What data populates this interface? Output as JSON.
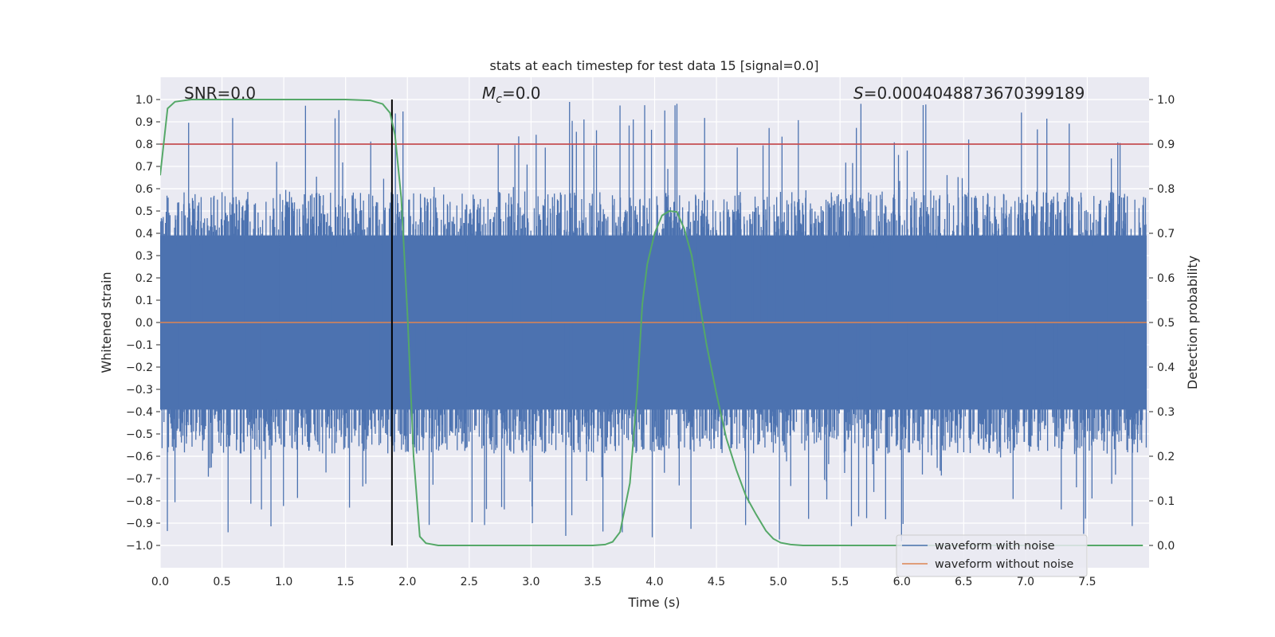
{
  "chart_data": {
    "type": "line",
    "title": "stats at each timestep for test data 15 [signal=0.0]",
    "xlabel": "Time (s)",
    "ylabel": "Whitened strain",
    "y2label": "Detection probability",
    "xlim": [
      0.0,
      8.0
    ],
    "ylim": [
      -1.1,
      1.1
    ],
    "y2lim": [
      -0.05,
      1.05
    ],
    "xticks": [
      "0.0",
      "0.5",
      "1.0",
      "1.5",
      "2.0",
      "2.5",
      "3.0",
      "3.5",
      "4.0",
      "4.5",
      "5.0",
      "5.5",
      "6.0",
      "6.5",
      "7.0",
      "7.5"
    ],
    "yticks": [
      "1.0",
      "0.9",
      "0.8",
      "0.7",
      "0.6",
      "0.5",
      "0.4",
      "0.3",
      "0.2",
      "0.1",
      "0.0",
      "−0.1",
      "−0.2",
      "−0.3",
      "−0.4",
      "−0.5",
      "−0.6",
      "−0.7",
      "−0.8",
      "−0.9",
      "−1.0"
    ],
    "y2ticks": [
      "1.0",
      "0.9",
      "0.8",
      "0.7",
      "0.6",
      "0.5",
      "0.4",
      "0.3",
      "0.2",
      "0.1",
      "0.0"
    ],
    "grid": true,
    "legend_position": "lower-right",
    "annotations": {
      "snr": "SNR=0.0",
      "mc_symbol": "M",
      "mc_sub": "c",
      "mc_value": "=0.0",
      "s_symbol": "S",
      "s_value": "=0.0004048873670399189"
    },
    "threshold_probability": 0.9,
    "marker_time": 1.875,
    "series": [
      {
        "name": "waveform with noise",
        "axis": "left",
        "color": "#4c72b0",
        "noise_amplitude_typical": 0.42,
        "noise_amplitude_peak": 0.99
      },
      {
        "name": "waveform without noise",
        "axis": "left",
        "color": "#dd8452",
        "constant_value": 0.0
      },
      {
        "name": "detection probability",
        "axis": "right",
        "color": "#55a868",
        "x": [
          0.0,
          0.06,
          0.12,
          0.25,
          0.5,
          1.0,
          1.5,
          1.7,
          1.8,
          1.86,
          1.9,
          1.95,
          2.0,
          2.05,
          2.1,
          2.15,
          2.25,
          2.5,
          3.0,
          3.5,
          3.6,
          3.66,
          3.72,
          3.8,
          3.86,
          3.9,
          3.94,
          4.0,
          4.06,
          4.12,
          4.18,
          4.24,
          4.3,
          4.36,
          4.42,
          4.5,
          4.58,
          4.66,
          4.74,
          4.82,
          4.9,
          4.96,
          5.02,
          5.1,
          5.2,
          5.5,
          6.0,
          6.5,
          7.0,
          7.5,
          7.95
        ],
        "y": [
          0.83,
          0.98,
          0.995,
          1.0,
          1.0,
          1.0,
          1.0,
          0.998,
          0.99,
          0.97,
          0.92,
          0.78,
          0.52,
          0.2,
          0.02,
          0.005,
          0.0,
          0.0,
          0.0,
          0.0,
          0.002,
          0.008,
          0.03,
          0.14,
          0.35,
          0.54,
          0.63,
          0.7,
          0.74,
          0.75,
          0.748,
          0.71,
          0.65,
          0.55,
          0.45,
          0.34,
          0.24,
          0.17,
          0.11,
          0.07,
          0.033,
          0.015,
          0.006,
          0.002,
          0.0,
          0.0,
          0.0,
          0.0,
          0.0,
          0.0,
          0.0
        ]
      }
    ]
  }
}
